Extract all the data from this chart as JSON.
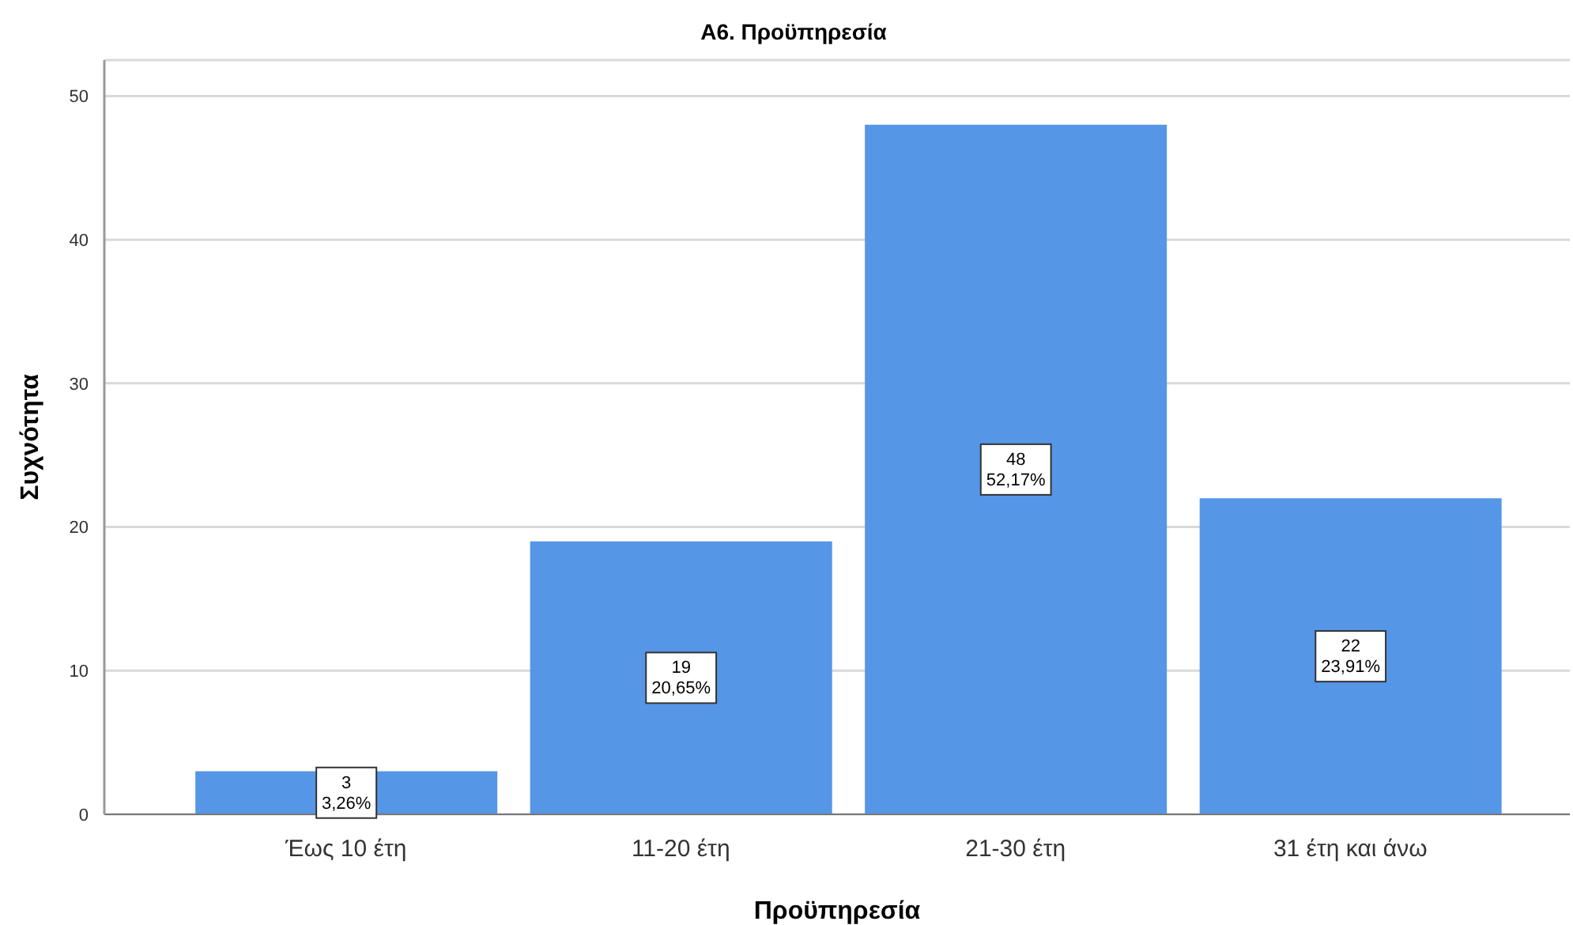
{
  "chart_data": {
    "type": "bar",
    "title": "A6. Προϋπηρεσία",
    "xlabel": "Προϋπηρεσία",
    "ylabel": "Συχνότητα",
    "categories": [
      "Έως 10 έτη",
      "11-20 έτη",
      "21-30 έτη",
      "31 έτη και άνω"
    ],
    "values": [
      3,
      19,
      48,
      22
    ],
    "color": "#5596e6",
    "value_labels": [
      "3\n3,26%",
      "19\n20,65%",
      "48\n52,17%",
      "22\n23,91%"
    ],
    "ylim": [
      0,
      52.5
    ],
    "yticks": [
      0,
      10,
      20,
      30,
      40,
      50
    ],
    "grid": "y"
  }
}
